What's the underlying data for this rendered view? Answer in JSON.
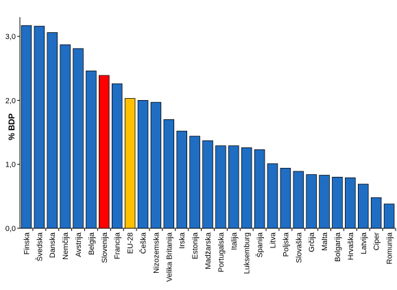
{
  "chart_data": {
    "type": "bar",
    "title": "",
    "xlabel": "",
    "ylabel": "% BDP",
    "ylim": [
      0,
      3.3
    ],
    "yticks": [
      "0,0",
      "1,0",
      "2,0",
      "3,0"
    ],
    "ytick_values": [
      0,
      1,
      2,
      3
    ],
    "grid": false,
    "legend": "none",
    "categories": [
      "Finska",
      "Švedska",
      "Danska",
      "Nemčija",
      "Avstrija",
      "Belgija",
      "Slovenija",
      "Francija",
      "EU-28",
      "Češka",
      "Nizozemska",
      "Velika Britanija",
      "Irska",
      "Estonija",
      "Madžarska",
      "Portugalska",
      "Italija",
      "Luksemburg",
      "Španija",
      "Litva",
      "Poljska",
      "Slovaška",
      "Grčija",
      "Malta",
      "Bolgarija",
      "Hrvaška",
      "Latvija",
      "Ciper",
      "Romunija"
    ],
    "values": [
      3.17,
      3.16,
      3.06,
      2.87,
      2.81,
      2.46,
      2.39,
      2.26,
      2.03,
      2.0,
      1.97,
      1.7,
      1.52,
      1.44,
      1.37,
      1.29,
      1.29,
      1.26,
      1.23,
      1.01,
      0.94,
      0.89,
      0.84,
      0.83,
      0.8,
      0.79,
      0.69,
      0.48,
      0.38
    ],
    "colors": {
      "default": "#1f6ec4",
      "highlight_slovenia": "#ff0000",
      "highlight_eu": "#ffc000"
    },
    "highlights": {
      "Slovenija": "highlight_slovenia",
      "EU-28": "highlight_eu"
    }
  }
}
